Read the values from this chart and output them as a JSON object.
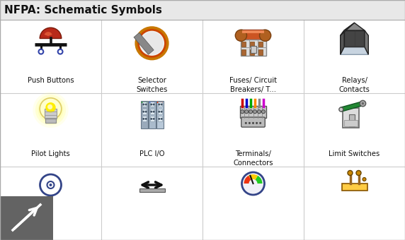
{
  "title": "NFPA: Schematic Symbols",
  "title_fontsize": 11,
  "bg_color": "#ffffff",
  "header_bg": "#e8e8e8",
  "border_color": "#aaaaaa",
  "grid_lines_color": "#cccccc",
  "cell_labels": [
    [
      "Push Buttons",
      "Selector\nSwitches",
      "Fuses/ Circuit\nBreakers/ T...",
      "Relays/\nContacts"
    ],
    [
      "Pilot Lights",
      "PLC I/O",
      "Terminals/\nConnectors",
      "Limit Switches"
    ],
    [
      "",
      "",
      "",
      ""
    ]
  ],
  "cols": 4,
  "rows": 3,
  "figsize": [
    5.72,
    3.4
  ],
  "dpi": 100,
  "overlay_box": {
    "color": "#636363",
    "alpha": 1.0
  },
  "overlay_arrow": {
    "color": "#ffffff"
  }
}
